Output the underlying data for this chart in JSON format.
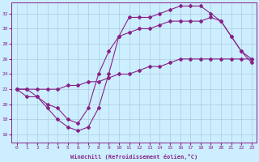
{
  "xlabel": "Windchill (Refroidissement éolien,°C)",
  "background_color": "#cceeff",
  "grid_color": "#aaccdd",
  "line_color": "#882288",
  "xlim": [
    -0.5,
    23.5
  ],
  "ylim": [
    15,
    33.5
  ],
  "yticks": [
    16,
    18,
    20,
    22,
    24,
    26,
    28,
    30,
    32
  ],
  "xticks": [
    0,
    1,
    2,
    3,
    4,
    5,
    6,
    7,
    8,
    9,
    10,
    11,
    12,
    13,
    14,
    15,
    16,
    17,
    18,
    19,
    20,
    21,
    22,
    23
  ],
  "series": [
    {
      "x": [
        0,
        1,
        2,
        3,
        4,
        5,
        6,
        7,
        8,
        9,
        10,
        11,
        12,
        13,
        14,
        15,
        16,
        17,
        18,
        19,
        20,
        21,
        22,
        23
      ],
      "y": [
        22,
        22,
        22,
        22,
        22,
        22.5,
        22.5,
        23,
        23,
        23.5,
        24,
        24,
        24.5,
        25,
        25,
        25.5,
        26,
        26,
        26,
        26,
        26,
        26,
        26,
        26
      ]
    },
    {
      "x": [
        0,
        1,
        2,
        3,
        4,
        5,
        6,
        7,
        8,
        9,
        10,
        11,
        12,
        13,
        14,
        15,
        16,
        17,
        18,
        19,
        20,
        21,
        22,
        23
      ],
      "y": [
        22,
        21,
        21,
        19.5,
        18,
        17,
        16.5,
        17,
        19.5,
        24,
        29,
        31.5,
        31.5,
        31.5,
        32,
        32.5,
        33,
        33,
        33,
        32,
        31,
        29,
        27,
        25.5
      ]
    },
    {
      "x": [
        0,
        1,
        2,
        3,
        4,
        5,
        6,
        7,
        8,
        9,
        10,
        11,
        12,
        13,
        14,
        15,
        16,
        17,
        18,
        19,
        20,
        21,
        22,
        23
      ],
      "y": [
        22,
        22,
        21,
        20,
        19.5,
        18,
        17.5,
        19.5,
        24,
        27,
        29,
        29.5,
        30,
        30,
        30.5,
        31,
        31,
        31,
        31,
        31.5,
        31,
        29,
        27,
        26
      ]
    }
  ]
}
